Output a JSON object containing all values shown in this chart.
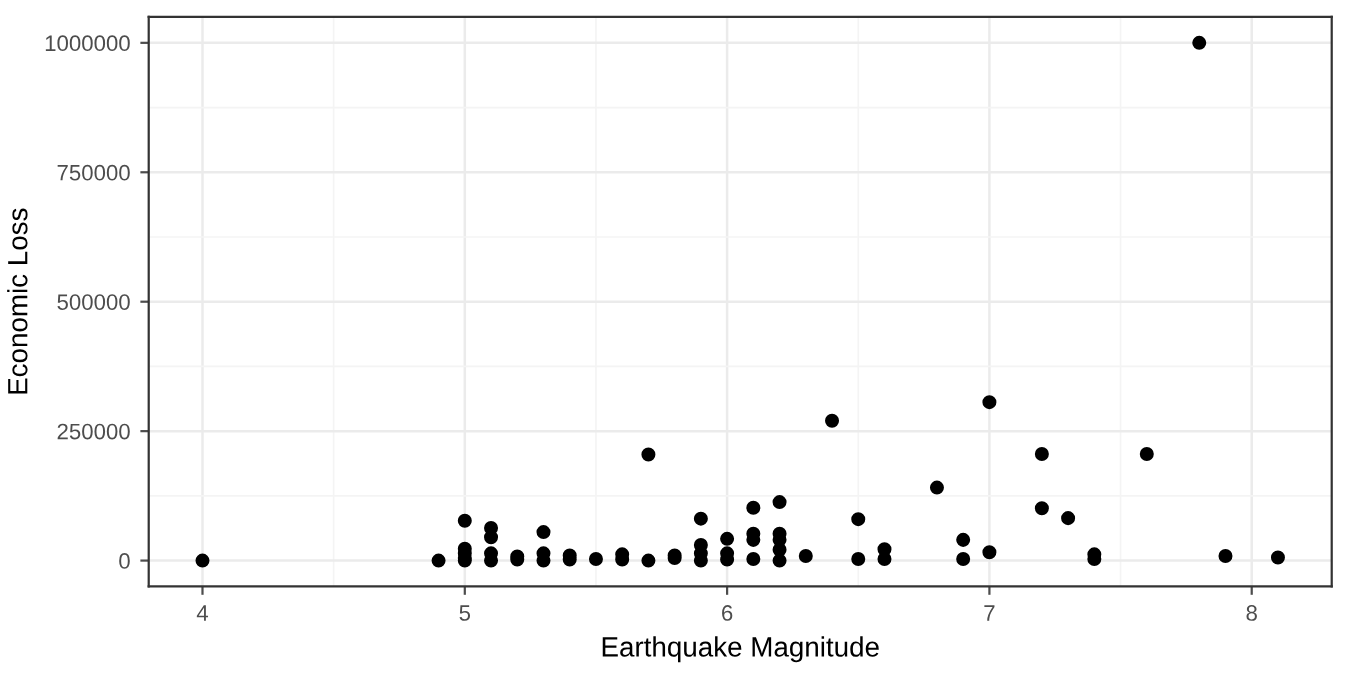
{
  "chart_data": {
    "type": "scatter",
    "xlabel": "Earthquake Magnitude",
    "ylabel": "Economic Loss",
    "x": [
      4.0,
      4.9,
      5.0,
      5.0,
      5.0,
      5.0,
      5.0,
      5.1,
      5.1,
      5.1,
      5.1,
      5.2,
      5.2,
      5.3,
      5.3,
      5.3,
      5.4,
      5.4,
      5.5,
      5.6,
      5.6,
      5.7,
      5.7,
      5.8,
      5.8,
      5.9,
      5.9,
      5.9,
      5.9,
      6.0,
      6.0,
      6.0,
      6.1,
      6.1,
      6.1,
      6.1,
      6.2,
      6.2,
      6.2,
      6.2,
      6.2,
      6.3,
      6.4,
      6.5,
      6.5,
      6.6,
      6.6,
      6.8,
      6.9,
      6.9,
      7.0,
      7.0,
      7.2,
      7.2,
      7.3,
      7.4,
      7.4,
      7.6,
      7.8,
      7.9,
      8.1
    ],
    "series": [
      {
        "color": "#000000",
        "values": [
          0,
          0,
          77000,
          23000,
          14000,
          5000,
          0,
          63000,
          45000,
          14000,
          0,
          8000,
          2000,
          55000,
          14000,
          0,
          10000,
          2000,
          3000,
          12000,
          2000,
          205000,
          0,
          10000,
          5000,
          81000,
          30000,
          14000,
          0,
          42000,
          14000,
          2000,
          102000,
          52000,
          40000,
          3000,
          113000,
          52000,
          40000,
          21000,
          0,
          9000,
          270000,
          80000,
          3000,
          22000,
          3000,
          141000,
          40000,
          3000,
          306000,
          16000,
          206000,
          101000,
          82000,
          12000,
          3000,
          206000,
          1000000,
          9000,
          6000
        ]
      }
    ],
    "xlim": [
      3.795,
      8.305
    ],
    "ylim": [
      -50000,
      1050000
    ],
    "xticks": [
      4,
      5,
      6,
      7,
      8
    ],
    "yticks": [
      0,
      250000,
      500000,
      750000,
      1000000
    ],
    "grid": true,
    "marker": "circle"
  }
}
